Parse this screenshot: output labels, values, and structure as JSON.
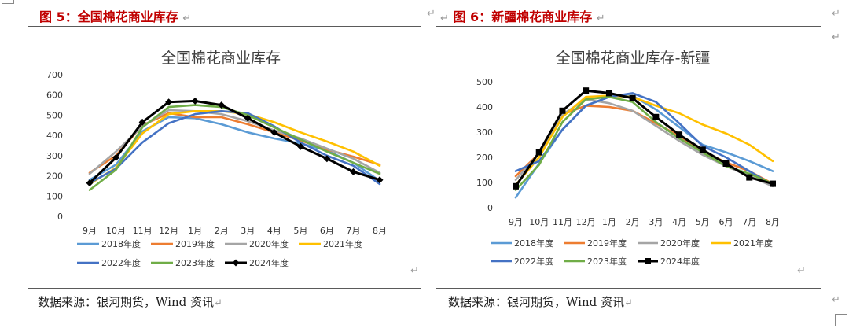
{
  "left": {
    "figure_title": "图 5：全国棉花商业库存",
    "source": "数据来源：银河期货，Wind 资讯"
  },
  "right": {
    "figure_title": "图 6：新疆棉花商业库存",
    "source": "数据来源：银河期货，Wind 资讯"
  },
  "return_mark": "↵",
  "colors": {
    "2018年度": "#5b9bd5",
    "2019年度": "#ed7d31",
    "2020年度": "#a5a5a5",
    "2021年度": "#ffc000",
    "2022年度": "#4472c4",
    "2023年度": "#70ad47",
    "2024年度": "#000000"
  },
  "chart_data": [
    {
      "type": "line",
      "title": "全国棉花商业库存",
      "categories": [
        "9月",
        "10月",
        "11月",
        "12月",
        "1月",
        "2月",
        "3月",
        "4月",
        "5月",
        "6月",
        "7月",
        "8月"
      ],
      "ylim": [
        0,
        700
      ],
      "yticks": [
        0,
        100,
        200,
        300,
        400,
        500,
        600,
        700
      ],
      "legend_position": "bottom",
      "series": [
        {
          "name": "2018年度",
          "values": [
            180,
            255,
            420,
            490,
            485,
            455,
            415,
            385,
            360,
            325,
            265,
            175
          ]
        },
        {
          "name": "2019年度",
          "values": [
            215,
            300,
            450,
            510,
            490,
            490,
            455,
            415,
            375,
            330,
            295,
            255
          ]
        },
        {
          "name": "2020年度",
          "values": [
            210,
            320,
            445,
            525,
            520,
            505,
            470,
            425,
            385,
            335,
            285,
            215
          ]
        },
        {
          "name": "2021年度",
          "values": [
            160,
            240,
            410,
            505,
            520,
            520,
            505,
            465,
            415,
            370,
            320,
            250
          ]
        },
        {
          "name": "2022年度",
          "values": [
            165,
            235,
            365,
            460,
            505,
            520,
            510,
            445,
            365,
            300,
            250,
            160
          ]
        },
        {
          "name": "2023年度",
          "values": [
            130,
            230,
            440,
            540,
            550,
            540,
            500,
            440,
            380,
            320,
            265,
            210
          ]
        },
        {
          "name": "2024年度",
          "values": [
            165,
            290,
            465,
            565,
            570,
            550,
            485,
            415,
            345,
            285,
            220,
            180
          ]
        }
      ]
    },
    {
      "type": "line",
      "title": "全国棉花商业库存-新疆",
      "categories": [
        "9月",
        "10月",
        "11月",
        "12月",
        "1月",
        "2月",
        "3月",
        "4月",
        "5月",
        "6月",
        "7月",
        "8月"
      ],
      "ylim": [
        0,
        500
      ],
      "yticks": [
        0,
        100,
        200,
        300,
        400,
        500
      ],
      "legend_position": "bottom",
      "series": [
        {
          "name": "2018年度",
          "values": [
            40,
            175,
            310,
            405,
            440,
            445,
            390,
            320,
            250,
            220,
            185,
            145
          ]
        },
        {
          "name": "2019年度",
          "values": [
            125,
            215,
            370,
            405,
            400,
            385,
            335,
            285,
            225,
            180,
            145,
            95
          ]
        },
        {
          "name": "2020年度",
          "values": [
            110,
            215,
            370,
            430,
            415,
            385,
            325,
            265,
            210,
            165,
            125,
            85
          ]
        },
        {
          "name": "2021年度",
          "values": [
            90,
            200,
            360,
            440,
            445,
            440,
            405,
            375,
            330,
            295,
            250,
            185
          ]
        },
        {
          "name": "2022年度",
          "values": [
            145,
            185,
            310,
            405,
            440,
            455,
            420,
            335,
            245,
            200,
            145,
            90
          ]
        },
        {
          "name": "2023年度",
          "values": [
            70,
            170,
            340,
            430,
            440,
            420,
            340,
            275,
            220,
            165,
            135,
            95
          ]
        },
        {
          "name": "2024年度",
          "values": [
            85,
            220,
            385,
            465,
            455,
            435,
            360,
            290,
            230,
            175,
            120,
            95
          ]
        }
      ]
    }
  ]
}
